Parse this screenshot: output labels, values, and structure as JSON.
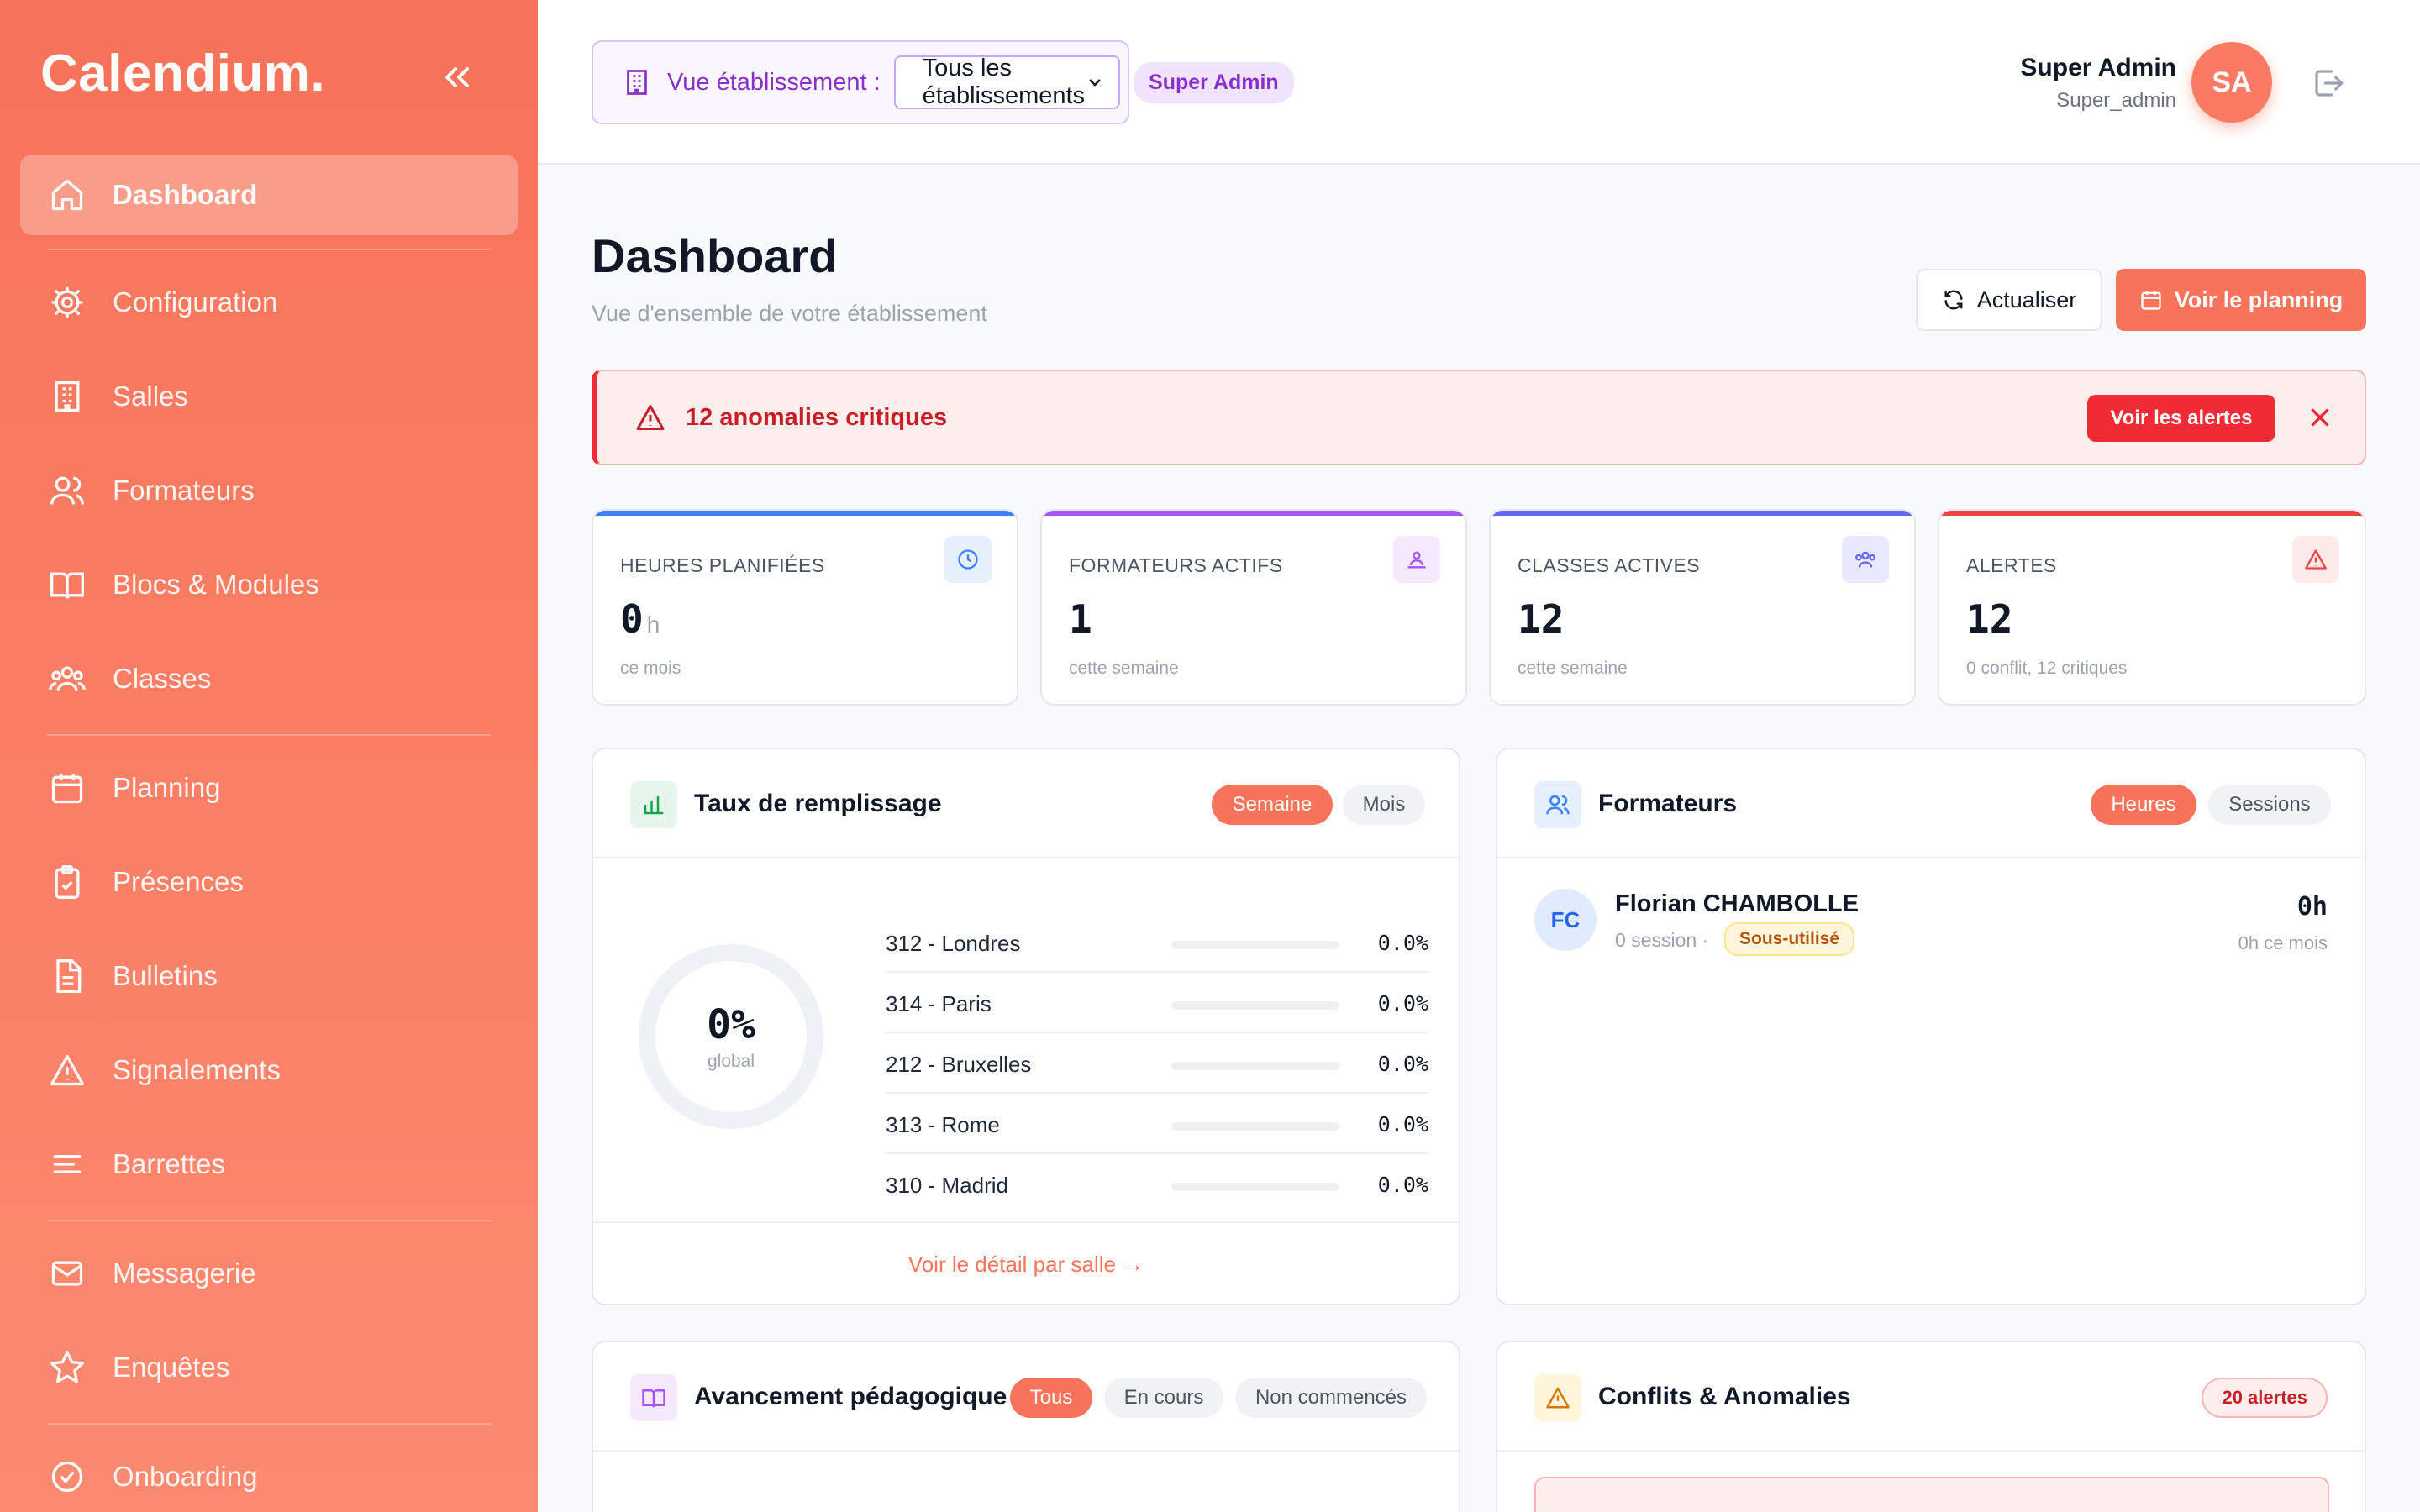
{
  "app": {
    "brand": "Calendium."
  },
  "sidebar": {
    "items": [
      {
        "label": "Dashboard",
        "icon": "home-icon"
      },
      {
        "label": "Configuration",
        "icon": "gear-icon"
      },
      {
        "label": "Salles",
        "icon": "building-icon"
      },
      {
        "label": "Formateurs",
        "icon": "users-icon"
      },
      {
        "label": "Blocs & Modules",
        "icon": "book-icon"
      },
      {
        "label": "Classes",
        "icon": "group-icon"
      },
      {
        "label": "Planning",
        "icon": "calendar-icon"
      },
      {
        "label": "Présences",
        "icon": "clipboard-check-icon"
      },
      {
        "label": "Bulletins",
        "icon": "document-icon"
      },
      {
        "label": "Signalements",
        "icon": "warning-icon"
      },
      {
        "label": "Barrettes",
        "icon": "lines-icon"
      },
      {
        "label": "Messagerie",
        "icon": "mail-icon"
      },
      {
        "label": "Enquêtes",
        "icon": "star-icon"
      },
      {
        "label": "Onboarding",
        "icon": "check-circle-icon"
      }
    ]
  },
  "header": {
    "estab_label": "Vue établissement :",
    "estab_value": "Tous les établissements",
    "role_badge": "Super Admin",
    "user_name": "Super Admin",
    "user_role": "Super_admin",
    "avatar_initials": "SA"
  },
  "page": {
    "title": "Dashboard",
    "subtitle": "Vue d'ensemble de votre établissement",
    "refresh_label": "Actualiser",
    "planning_label": "Voir le planning"
  },
  "alert": {
    "text": "12 anomalies critiques",
    "button": "Voir les alertes"
  },
  "stats": [
    {
      "label": "HEURES PLANIFIÉES",
      "value": "0",
      "unit": "h",
      "sub": "ce mois",
      "color": "#3b82f6"
    },
    {
      "label": "FORMATEURS ACTIFS",
      "value": "1",
      "unit": "",
      "sub": "cette semaine",
      "color": "#a855f7"
    },
    {
      "label": "CLASSES ACTIVES",
      "value": "12",
      "unit": "",
      "sub": "cette semaine",
      "color": "#6366f1"
    },
    {
      "label": "ALERTES",
      "value": "12",
      "unit": "",
      "sub": "0 conflit, 12 critiques",
      "color": "#ef4444"
    }
  ],
  "fill_rate": {
    "title": "Taux de remplissage",
    "tab_week": "Semaine",
    "tab_month": "Mois",
    "global_value": "0%",
    "global_label": "global",
    "rooms": [
      {
        "name": "312 - Londres",
        "pct_text": "0.0%",
        "fill": 0
      },
      {
        "name": "314 - Paris",
        "pct_text": "0.0%",
        "fill": 0
      },
      {
        "name": "212 - Bruxelles",
        "pct_text": "0.0%",
        "fill": 0
      },
      {
        "name": "313 - Rome",
        "pct_text": "0.0%",
        "fill": 0
      },
      {
        "name": "310 - Madrid",
        "pct_text": "0.0%",
        "fill": 0
      }
    ],
    "footer_link": "Voir le détail par salle →"
  },
  "trainers": {
    "title": "Formateurs",
    "tab_hours": "Heures",
    "tab_sessions": "Sessions",
    "list": [
      {
        "initials": "FC",
        "name": "Florian CHAMBOLLE",
        "sessions": "0 session ·",
        "tag": "Sous-utilisé",
        "hours": "0h",
        "hours_month": "0h ce mois"
      }
    ]
  },
  "progress": {
    "title": "Avancement pédagogique",
    "tab_all": "Tous",
    "tab_ongoing": "En cours",
    "tab_not_started": "Non commencés"
  },
  "conflicts": {
    "title": "Conflits & Anomalies",
    "badge": "20 alertes"
  }
}
